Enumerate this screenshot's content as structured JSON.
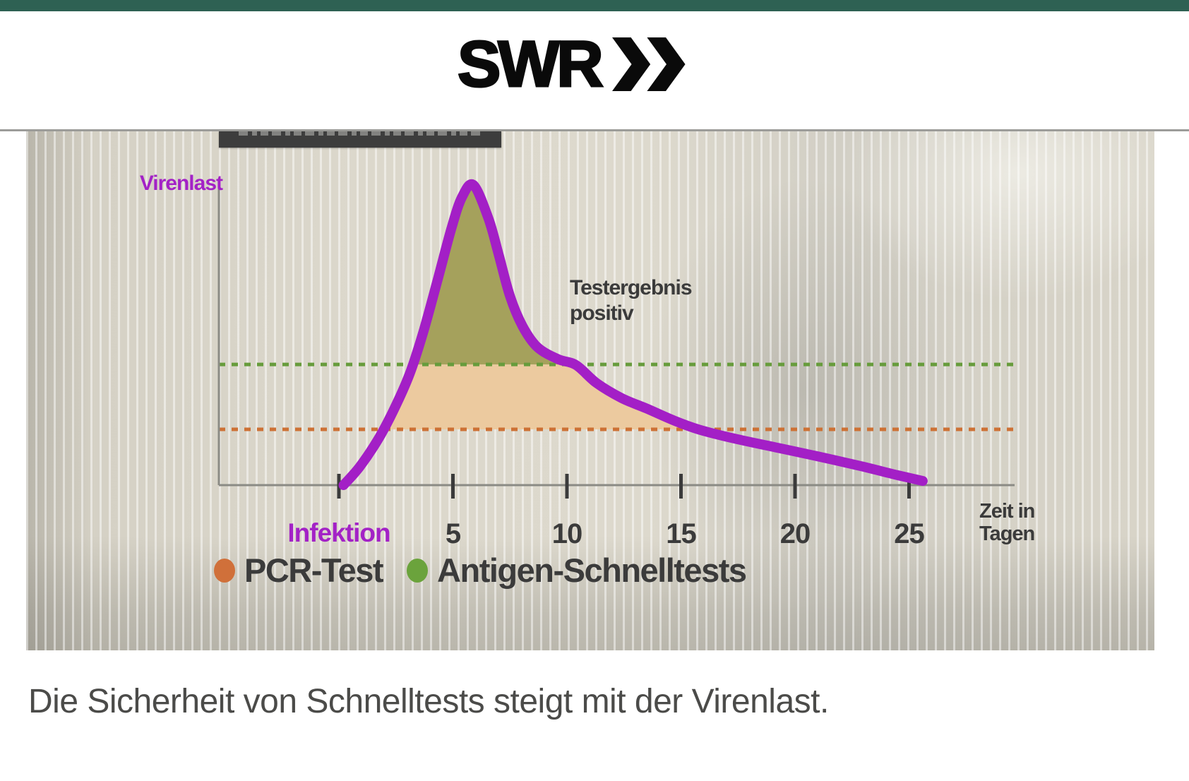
{
  "brand": {
    "logo_text": "SWR",
    "logo_color": "#0a0a0a",
    "top_bar_color": "#2e6153"
  },
  "chart_data": {
    "type": "line",
    "ylabel": "Virenlast",
    "xlabel_line1": "Zeit in",
    "xlabel_line2": "Tagen",
    "axis_color": "#8b8b85",
    "tick_color": "#3b3b3b",
    "xlim": [
      -5.3,
      29.6
    ],
    "ylim": [
      0,
      1.06
    ],
    "grid": false,
    "x_ticks": [
      {
        "day": 0,
        "label": "Infektion",
        "color": "#a322c6"
      },
      {
        "day": 5,
        "label": "5"
      },
      {
        "day": 10,
        "label": "10"
      },
      {
        "day": 15,
        "label": "15"
      },
      {
        "day": 20,
        "label": "20"
      },
      {
        "day": 25,
        "label": "25"
      }
    ],
    "series": [
      {
        "name": "Virenlast",
        "color": "#a31fc6",
        "points": [
          [
            0.2,
            0.0
          ],
          [
            0.9,
            0.06
          ],
          [
            1.7,
            0.15
          ],
          [
            2.4,
            0.25
          ],
          [
            3.1,
            0.37
          ],
          [
            3.7,
            0.51
          ],
          [
            4.35,
            0.69
          ],
          [
            4.95,
            0.86
          ],
          [
            5.4,
            0.96
          ],
          [
            5.9,
            1.0
          ],
          [
            6.55,
            0.89
          ],
          [
            7.0,
            0.77
          ],
          [
            7.5,
            0.63
          ],
          [
            8.05,
            0.53
          ],
          [
            8.7,
            0.46
          ],
          [
            9.6,
            0.42
          ],
          [
            10.4,
            0.4
          ],
          [
            11.3,
            0.34
          ],
          [
            12.4,
            0.29
          ],
          [
            13.5,
            0.255
          ],
          [
            14.7,
            0.215
          ],
          [
            15.8,
            0.185
          ],
          [
            17.35,
            0.155
          ],
          [
            19.2,
            0.125
          ],
          [
            21.05,
            0.095
          ],
          [
            22.9,
            0.063
          ],
          [
            24.45,
            0.034
          ],
          [
            25.6,
            0.014
          ]
        ]
      }
    ],
    "thresholds": [
      {
        "name": "Antigen-Schnelltests",
        "value": 0.402,
        "line_color": "#679c3c",
        "area_color": "#a5a15c"
      },
      {
        "name": "PCR-Test",
        "value": 0.186,
        "line_color": "#cd7135",
        "area_color": "#ecca9f"
      }
    ],
    "annotation": {
      "line1": "Testergebnis",
      "line2": "positiv"
    }
  },
  "legend": [
    {
      "label": "PCR-Test",
      "color": "#d0703a"
    },
    {
      "label": "Antigen-Schnelltests",
      "color": "#6ba33c"
    }
  ],
  "caption": "Die Sicherheit von Schnelltests steigt mit der Virenlast."
}
